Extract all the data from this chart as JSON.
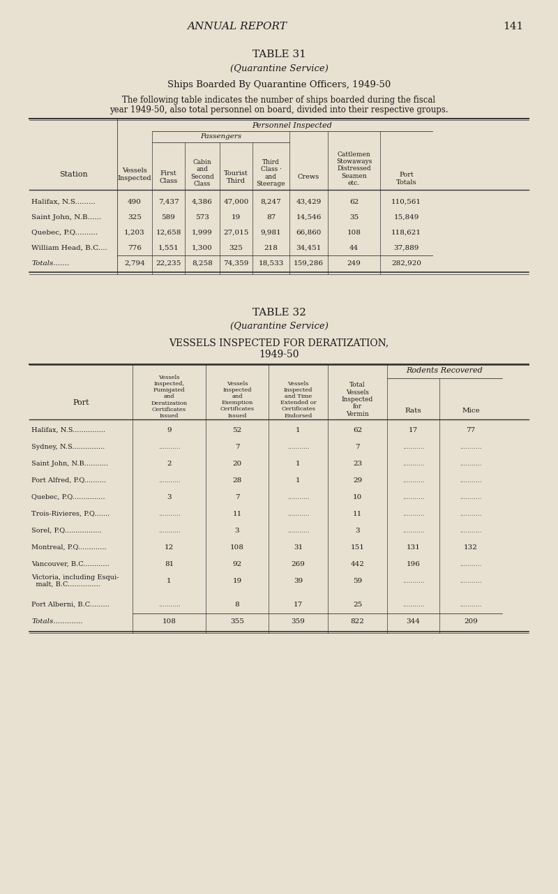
{
  "bg_color": "#e8e0d0",
  "text_color": "#1a1a1a",
  "page_title": "ANNUAL REPORT",
  "page_number": "141",
  "table31_title": "TABLE 31",
  "table31_subtitle": "(Quarantine Service)",
  "table31_heading": "Ships Boarded By Quarantine Officers, 1949-50",
  "table31_description": "The following table indicates the number of ships boarded during the fiscal\nyear 1949-50, also total personnel on board, divided into their respective groups.",
  "table31_col_headers": {
    "station": "Station",
    "vessels_inspected": "Vessels\nInspected",
    "first_class": "First\nClass",
    "cabin_second": "Cabin\nand\nSecond\nClass",
    "tourist_third": "Tourist\nThird",
    "third_class": "Third\nClass ·\nand\nSteerage",
    "crews": "Crews",
    "cattlemen": "Cattlemen\nStowaways\nDistressed\nSeamen\netc.",
    "port_totals": "Port\nTotals"
  },
  "table31_group_headers": {
    "personnel_inspected": "Personnel Inspected",
    "passengers": "Passengers"
  },
  "table31_rows": [
    [
      "Halifax, N.S.........",
      "490",
      "7,437",
      "4,386",
      "47,000",
      "8,247",
      "43,429",
      "62",
      "110,561"
    ],
    [
      "Saint John, N.B......",
      "325",
      "589",
      "573",
      "19",
      "87",
      "14,546",
      "35",
      "15,849"
    ],
    [
      "Quebec, P.Q..........",
      "1,203",
      "12,658",
      "1,999",
      "27,015",
      "9,981",
      "66,860",
      "108",
      "118,621"
    ],
    [
      "William Head, B.C....",
      "776",
      "1,551",
      "1,300",
      "325",
      "218",
      "34,451",
      "44",
      "37,889"
    ]
  ],
  "table31_totals": [
    "Totals.......",
    "2,794",
    "22,235",
    "8,258",
    "74,359",
    "18,533",
    "159,286",
    "249",
    "282,920"
  ],
  "table32_title": "TABLE 32",
  "table32_subtitle": "(Quarantine Service)",
  "table32_heading": "VESSELS INSPECTED FOR DERATIZATION,\n1949-50",
  "table32_col_headers": {
    "port": "Port",
    "fumigated": "Vessels\nInspected,\nFumigated\nand\nDeratization\nCertificates\nIssued",
    "exemption": "Vessels\nInspected\nand\nExemption\nCertificates\nIssued",
    "extended": "Vessels\nInspected\nand Time\nExtended or\nCertificates\nEndorsed",
    "total": "Total\nVessels\nInspected\nfor\nVermin",
    "rats": "Rats",
    "mice": "Mice"
  },
  "table32_rodents_header": "Rodents Recovered",
  "table32_rows": [
    [
      "Halifax, N.S...............",
      "9",
      "52",
      "1",
      "62",
      "17",
      "77"
    ],
    [
      "Sydney, N.S...............",
      "",
      "7",
      "",
      "7",
      "",
      ""
    ],
    [
      "Saint John, N.B...........",
      "2",
      "20",
      "1",
      "23",
      "",
      ""
    ],
    [
      "Port Alfred, P.Q..........",
      "",
      "28",
      "1",
      "29",
      "",
      ""
    ],
    [
      "Quebec, P.Q...............",
      "3",
      "7",
      "",
      "10",
      "",
      ""
    ],
    [
      "Trois-Rivieres, P.Q.......",
      "",
      "11",
      "",
      "11",
      "",
      ""
    ],
    [
      "Sorel, P.Q.................",
      "",
      "3",
      "",
      "3",
      "",
      ""
    ],
    [
      "Montreal, P.Q.............",
      "12",
      "108",
      "31",
      "151",
      "131",
      "132"
    ],
    [
      "Vancouver, B.C............",
      "81",
      "92",
      "269",
      "442",
      "196",
      ""
    ],
    [
      "Victoria, including Esqui-\n  malt, B.C...............",
      "1",
      "19",
      "39",
      "59",
      "",
      ""
    ],
    [
      "Port Alberni, B.C.........",
      "",
      "8",
      "17",
      "25",
      "",
      ""
    ]
  ],
  "table32_totals": [
    "Totals.............",
    "108",
    "355",
    "359",
    "822",
    "344",
    "209"
  ]
}
